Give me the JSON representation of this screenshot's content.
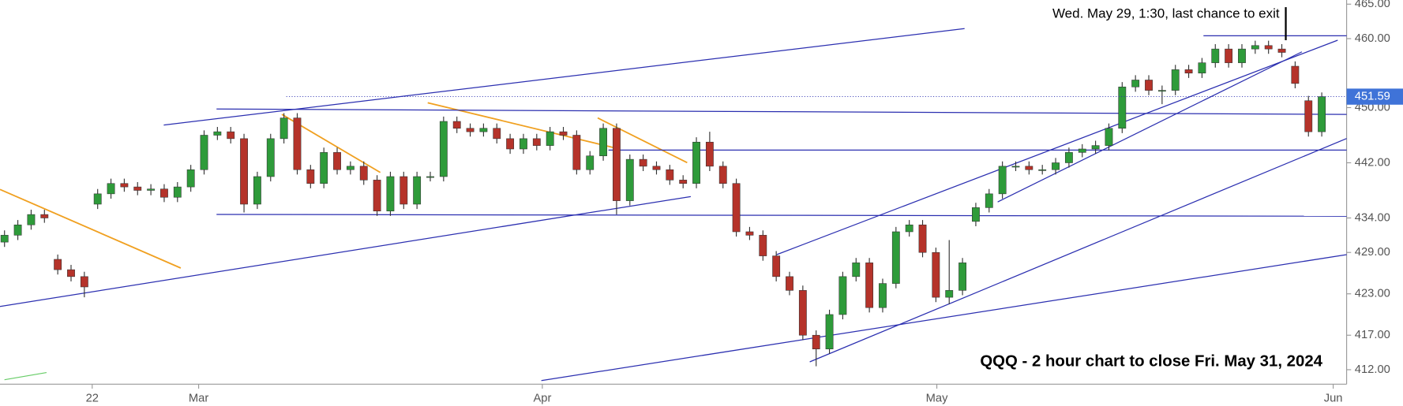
{
  "chart_data": {
    "type": "candlestick",
    "title": "QQQ - 2 hour chart to close Fri. May 31, 2024",
    "annotation": "Wed. May 29, 1:30, last chance to exit",
    "x": [
      0,
      1,
      2,
      3,
      4,
      5,
      6,
      7,
      8,
      9,
      10,
      11,
      12,
      13,
      14,
      15,
      16,
      17,
      18,
      19,
      20,
      21,
      22,
      23,
      24,
      25,
      26,
      27,
      28,
      29,
      30,
      31,
      32,
      33,
      34,
      35,
      36,
      37,
      38,
      39,
      40,
      41,
      42,
      43,
      44,
      45,
      46,
      47,
      48,
      49,
      50,
      51,
      52,
      53,
      54,
      55,
      56,
      57,
      58,
      59,
      60,
      61,
      62,
      63,
      64,
      65,
      66,
      67,
      68,
      69,
      70,
      71,
      72,
      73,
      74,
      75,
      76,
      77,
      78,
      79,
      80,
      81,
      82,
      83,
      84,
      85,
      86,
      87,
      88,
      89,
      90,
      91,
      92,
      93,
      94,
      95,
      96,
      97,
      98,
      99
    ],
    "open": [
      430.5,
      431.5,
      433,
      434.5,
      428,
      426.5,
      425.5,
      436,
      437.5,
      439,
      438.5,
      438,
      438.2,
      437,
      438.5,
      441,
      446,
      446.5,
      445.5,
      436,
      440,
      445.5,
      448.5,
      441,
      439,
      443.5,
      441,
      441.5,
      439.5,
      435,
      440,
      436,
      440,
      440,
      448,
      447,
      446.5,
      447,
      445.5,
      444,
      445.5,
      444.5,
      446.5,
      446,
      441,
      443,
      447,
      436.5,
      442.5,
      441.5,
      441,
      439.5,
      439,
      445,
      441.5,
      439,
      432,
      431.5,
      428.5,
      425.5,
      423.5,
      417,
      415,
      420,
      425.5,
      427.5,
      421,
      424.5,
      432,
      433,
      429,
      422.5,
      423.5,
      433.5,
      435.5,
      437.5,
      441.5,
      441.5,
      441,
      441,
      442,
      443.5,
      444,
      444.5,
      447,
      453,
      454,
      452.5,
      452.5,
      455.5,
      455,
      456.5,
      458.5,
      456.5,
      458.5,
      459,
      458.5,
      456,
      451,
      446.5
    ],
    "high": [
      432.2,
      433.7,
      435.2,
      435.2,
      428.7,
      427.2,
      426.2,
      438.2,
      439.7,
      439.7,
      439.2,
      438.9,
      438.9,
      439.2,
      441.7,
      446.7,
      447.2,
      447.2,
      446.2,
      440.7,
      446.2,
      449.2,
      449.2,
      441.7,
      444.2,
      444.2,
      442.2,
      442.2,
      440.2,
      440.7,
      440.7,
      440.7,
      440.7,
      448.7,
      448.7,
      447.7,
      447.7,
      447.7,
      446.2,
      446.2,
      446.2,
      447.2,
      447.2,
      446.7,
      443.7,
      447.7,
      447.7,
      443.2,
      443.2,
      442.2,
      441.7,
      440.2,
      445.7,
      446.5,
      442.2,
      439.7,
      432.7,
      432.2,
      429.2,
      426.2,
      424.2,
      417.7,
      420.7,
      426.2,
      428.2,
      428.2,
      425.2,
      432.7,
      433.7,
      433.7,
      429.7,
      430.8,
      428.2,
      436.2,
      438.2,
      442.2,
      442.2,
      442.2,
      441.7,
      442.7,
      444.2,
      444.7,
      445.2,
      447.7,
      453.7,
      454.7,
      454.7,
      453.2,
      456.2,
      456.2,
      457.2,
      459.2,
      459.2,
      459.2,
      459.7,
      459.7,
      459.2,
      456.7,
      451.7,
      452.2
    ],
    "low": [
      429.8,
      430.8,
      432.3,
      433.3,
      425.8,
      424.8,
      422.5,
      435.3,
      436.8,
      437.8,
      437.3,
      437.3,
      436.3,
      436.3,
      437.8,
      440.3,
      445.3,
      444.8,
      434.8,
      435.3,
      439.3,
      444.8,
      440.3,
      438.3,
      438.3,
      440.3,
      440.3,
      438.8,
      434.3,
      434.3,
      435.3,
      435.3,
      439.3,
      439.3,
      446.3,
      445.8,
      445.8,
      444.8,
      443.3,
      443.3,
      443.8,
      443.8,
      445.3,
      440.3,
      440.3,
      442.3,
      434.5,
      435.8,
      440.8,
      440.3,
      438.8,
      438.3,
      438.3,
      440.8,
      438.3,
      431.3,
      430.8,
      427.8,
      424.8,
      422.8,
      416.3,
      412.5,
      414.3,
      419.3,
      424.8,
      420.3,
      420.3,
      423.8,
      431.3,
      428.3,
      421.8,
      421.5,
      422.8,
      432.8,
      434.8,
      436.8,
      440.8,
      440.3,
      440.3,
      440.3,
      441.3,
      442.8,
      443.3,
      443.8,
      446.3,
      452.3,
      451.8,
      450.5,
      451.8,
      454.3,
      454.3,
      455.8,
      455.8,
      455.8,
      457.8,
      457.8,
      457.3,
      452.8,
      445.8,
      445.8
    ],
    "close": [
      431.5,
      433,
      434.5,
      434,
      426.5,
      425.5,
      424,
      437.5,
      439,
      438.5,
      438,
      438.2,
      437,
      438.5,
      441,
      446,
      446.5,
      445.5,
      436,
      440,
      445.5,
      448.5,
      441,
      439,
      443.5,
      441,
      441.5,
      439.5,
      435,
      440,
      436,
      440,
      440,
      448,
      447,
      446.5,
      447,
      445.5,
      444,
      445.5,
      444.5,
      446.5,
      446,
      441,
      443,
      447,
      436.5,
      442.5,
      441.5,
      441,
      439.5,
      439,
      445,
      441.5,
      439,
      432,
      431.5,
      428.5,
      425.5,
      423.5,
      417,
      415,
      420,
      425.5,
      427.5,
      421,
      424.5,
      432,
      433,
      429,
      422.5,
      423.5,
      427.5,
      435.5,
      437.5,
      441.5,
      441.5,
      441,
      441,
      442,
      443.5,
      444,
      444.5,
      447,
      453,
      454,
      452.5,
      452.5,
      455.5,
      455,
      456.5,
      458.5,
      456.5,
      458.5,
      459,
      458.5,
      458,
      453.5,
      446.5,
      451.59
    ],
    "up_color": "#2e9b3a",
    "down_color": "#b5332a",
    "last_price": 451.59,
    "last_price_label": "451.59",
    "xlim": [
      -0.34,
      100.87
    ],
    "xticks": [
      {
        "value": 6.59,
        "label": "22"
      },
      {
        "value": 14.59,
        "label": "Mar"
      },
      {
        "value": 40.42,
        "label": "Apr"
      },
      {
        "value": 70.07,
        "label": "May"
      },
      {
        "value": 99.86,
        "label": "Jun"
      }
    ],
    "ylim": [
      409.9,
      465.6
    ],
    "yticks": [
      {
        "value": 412,
        "label": "412.00"
      },
      {
        "value": 417,
        "label": "417.00"
      },
      {
        "value": 423,
        "label": "423.00"
      },
      {
        "value": 429,
        "label": "429.00"
      },
      {
        "value": 434,
        "label": "434.00"
      },
      {
        "value": 442,
        "label": "442.00"
      },
      {
        "value": 450,
        "label": "450.00"
      },
      {
        "value": 460,
        "label": "460.00"
      },
      {
        "value": 465,
        "label": "465.00"
      }
    ],
    "grid": false
  }
}
